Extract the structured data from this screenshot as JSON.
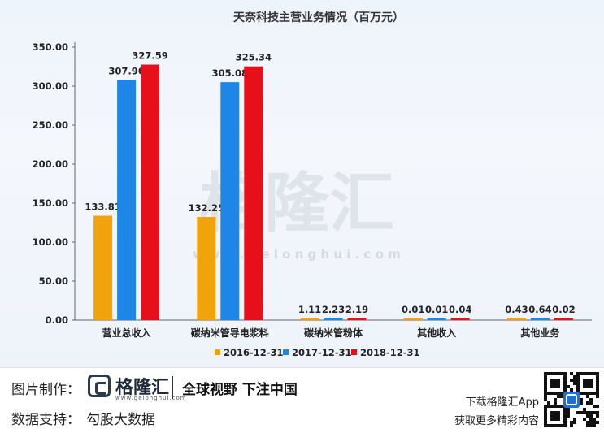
{
  "chart_data": {
    "type": "bar",
    "title": "天奈科技主营业务情况（百万元）",
    "categories": [
      "营业总收入",
      "碳纳米管导电浆料",
      "碳纳米管粉体",
      "其他收入",
      "其他业务"
    ],
    "series": [
      {
        "name": "2016-12-31",
        "color": "#f0a30a",
        "values": [
          133.81,
          132.25,
          1.11,
          0.01,
          0.43
        ]
      },
      {
        "name": "2017-12-31",
        "color": "#1e86e6",
        "values": [
          307.96,
          305.08,
          2.23,
          0.01,
          0.64
        ]
      },
      {
        "name": "2018-12-31",
        "color": "#e5101a",
        "values": [
          327.59,
          325.34,
          2.19,
          0.04,
          0.02
        ]
      }
    ],
    "value_labels": [
      [
        "133.81",
        "132.25",
        "1.11",
        "0.01",
        "0.43"
      ],
      [
        "307.96",
        "305.08",
        "2.23",
        "0.01",
        "0.64"
      ],
      [
        "327.59",
        "325.34",
        "2.19",
        "0.04",
        "0.02"
      ]
    ],
    "ylim": [
      0,
      350
    ],
    "yticks": [
      "0.00",
      "50.00",
      "100.00",
      "150.00",
      "200.00",
      "250.00",
      "300.00",
      "350.00"
    ],
    "xlabel": "",
    "ylabel": "",
    "legend_position": "bottom",
    "grid": false
  },
  "watermark": {
    "text": "格隆汇",
    "domain": "w w w . g e l o n g h u i . c o m"
  },
  "footer": {
    "credit_label": "图片制作：",
    "brand_name": "格隆汇",
    "brand_domain": "www.gelonghui.com",
    "slogan": "全球视野 下注中国",
    "source_label": "数据支持：",
    "source_name": "勾股大数据",
    "app_download": "下载格隆汇App",
    "app_tagline": "获取更多精彩内容"
  }
}
